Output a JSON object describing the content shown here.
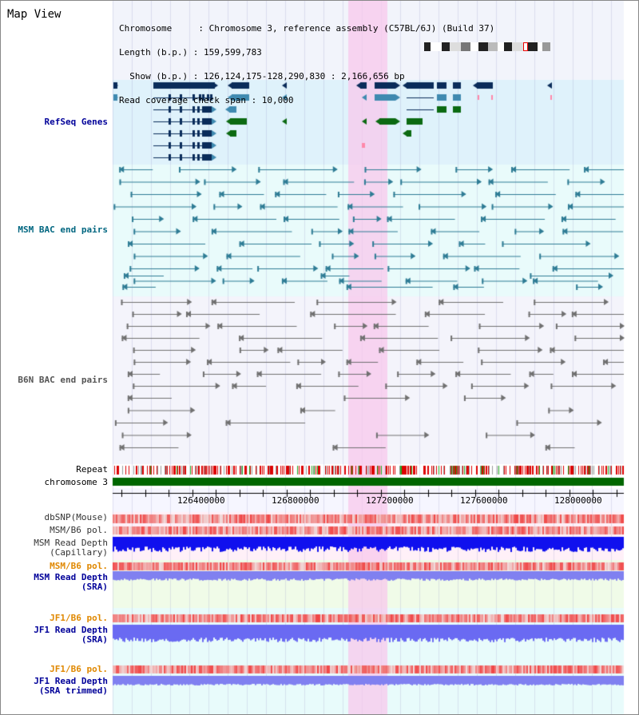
{
  "title": "Map View",
  "info": [
    "Chromosome     : Chromosome 3, reference assembly (C57BL/6J) (Build 37)",
    "Length (b.p.) : 159,599,783",
    "  Show (b.p.) : 126,124,175-128,290,830 : 2,166,656 bp",
    "Read coverage check span : 10,000"
  ],
  "tracks": {
    "refseq": "RefSeq Genes",
    "msm_bac": "MSM BAC end pairs",
    "b6n_bac": "B6N BAC end pairs",
    "repeat": "Repeat",
    "chromosome": "chromosome 3",
    "dbsnp": "dbSNP(Mouse)",
    "msm_b6_pol_1": "MSM/B6 pol.",
    "msm_depth_cap_1": "MSM Read Depth",
    "msm_depth_cap_2": "(Capillary)",
    "msm_b6_pol_2": "MSM/B6 pol.",
    "msm_depth_sra_1": "MSM Read Depth",
    "msm_depth_sra_2": "(SRA)",
    "jf1_b6_pol_1": "JF1/B6 pol.",
    "jf1_depth_sra_1": "JF1 Read Depth",
    "jf1_depth_sra_2": "(SRA)",
    "jf1_b6_pol_2": "JF1/B6 pol.",
    "jf1_depth_trim_1": "JF1 Read Depth",
    "jf1_depth_trim_2": "(SRA trimmed)"
  },
  "ruler_ticks": [
    "126400000",
    "126800000",
    "127200000",
    "127600000",
    "128000000"
  ],
  "colors": {
    "refseq_bg": "#dff2fb",
    "msm_bac_bg": "#e9fbfb",
    "b6n_bac_bg": "#f4f4fb",
    "highlight": "#f8d8f0",
    "gene_dark": "#0a2c5a",
    "gene_mid": "#3f8ab0",
    "gene_green": "#0c6a12",
    "bac_teal": "#2e7c95",
    "bac_gray": "#707070",
    "repeat_red": "#dd0000",
    "chrom_green": "#006600",
    "depth_blue": "#1010ee",
    "depth_lightblue": "#8080f0",
    "label_blue": "#000099",
    "label_teal": "#006680",
    "label_orange": "#e08800"
  }
}
